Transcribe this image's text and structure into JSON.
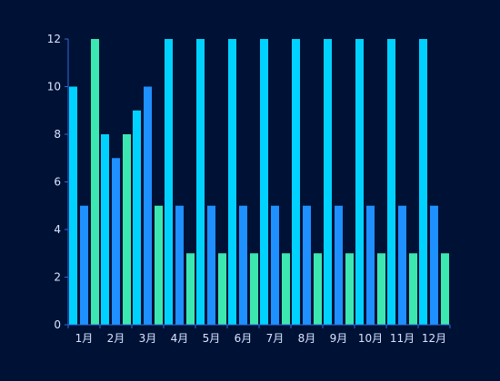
{
  "chart_data": {
    "type": "bar",
    "categories": [
      "1月",
      "2月",
      "3月",
      "4月",
      "5月",
      "6月",
      "7月",
      "8月",
      "9月",
      "10月",
      "11月",
      "12月"
    ],
    "series": [
      {
        "values": [
          10,
          8,
          9,
          12,
          12,
          12,
          12,
          12,
          12,
          12,
          12,
          12
        ],
        "color": "#00d2ff"
      },
      {
        "values": [
          5,
          7,
          10,
          5,
          5,
          5,
          5,
          5,
          5,
          5,
          5,
          5
        ],
        "color": "#1e90ff"
      },
      {
        "values": [
          12,
          8,
          5,
          3,
          3,
          3,
          3,
          3,
          3,
          3,
          3,
          3
        ],
        "color": "#3ce8b0"
      }
    ],
    "yticks": [
      0,
      2,
      4,
      6,
      8,
      10,
      12
    ],
    "ylim": [
      0,
      12
    ],
    "grid": false,
    "colors": {
      "background": "#001136",
      "axis": "#2f6bd8",
      "text": "#d7e6ff"
    }
  }
}
